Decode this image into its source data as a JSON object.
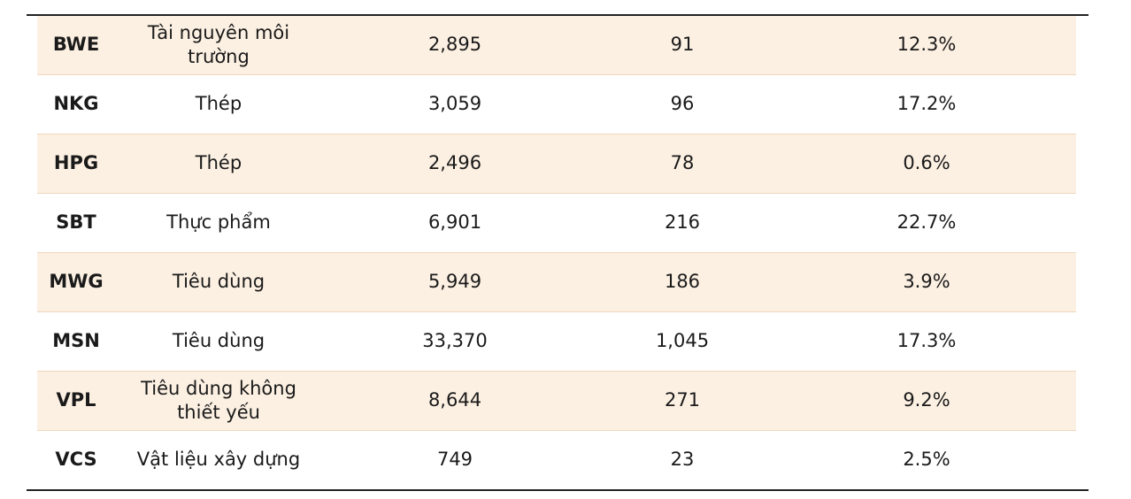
{
  "table": {
    "rows": [
      [
        "BWE",
        "Tài nguyên  môi trường",
        "2,895",
        "91",
        "12.3%"
      ],
      [
        "NKG",
        "Thép",
        "3,059",
        "96",
        "17.2%"
      ],
      [
        "HPG",
        "Thép",
        "2,496",
        "78",
        "0.6%"
      ],
      [
        "SBT",
        "Thực phẩm",
        "6,901",
        "216",
        "22.7%"
      ],
      [
        "MWG",
        "Tiêu dùng",
        "5,949",
        "186",
        "3.9%"
      ],
      [
        "MSN",
        "Tiêu dùng",
        "33,370",
        "1,045",
        "17.3%"
      ],
      [
        "VPL",
        "Tiêu dùng  không thiết yếu",
        "8,644",
        "271",
        "9.2%"
      ],
      [
        "VCS",
        "Vật liệu xây dựng",
        "749",
        "23",
        "2.5%"
      ]
    ]
  }
}
